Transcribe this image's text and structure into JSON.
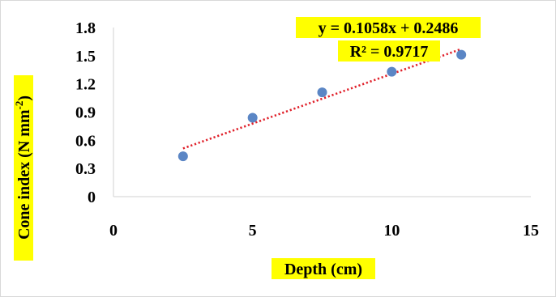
{
  "chart_data": {
    "type": "scatter",
    "xlabel": "Depth (cm)",
    "ylabel": {
      "prefix": "Cone index (N mm",
      "sup": "-2",
      "suffix": ")"
    },
    "xlim": [
      0,
      15
    ],
    "ylim": [
      0,
      1.8
    ],
    "xticks": [
      "0",
      "5",
      "10",
      "15"
    ],
    "xtick_values": [
      0,
      5,
      10,
      15
    ],
    "yticks": [
      "0",
      "0.3",
      "0.6",
      "0.9",
      "1.2",
      "1.5",
      "1.8"
    ],
    "ytick_values": [
      0,
      0.3,
      0.6,
      0.9,
      1.2,
      1.5,
      1.8
    ],
    "grid": false,
    "series": [
      {
        "x": [
          2.5,
          5,
          7.5,
          10,
          12.5
        ],
        "y": [
          0.43,
          0.84,
          1.11,
          1.33,
          1.51
        ]
      }
    ],
    "trendline": {
      "type": "linear",
      "slope": 0.1058,
      "intercept": 0.2486,
      "x_range": [
        2.5,
        12.5
      ],
      "style": "dotted",
      "equation_text": "y = 0.1058x + 0.2486",
      "r2_text": "R² = 0.9717"
    },
    "colors": {
      "marker": "#5b86c5",
      "trendline": "#e0202a",
      "label_highlight": "#ffff00",
      "axis_line": "#d9d9d9"
    }
  }
}
